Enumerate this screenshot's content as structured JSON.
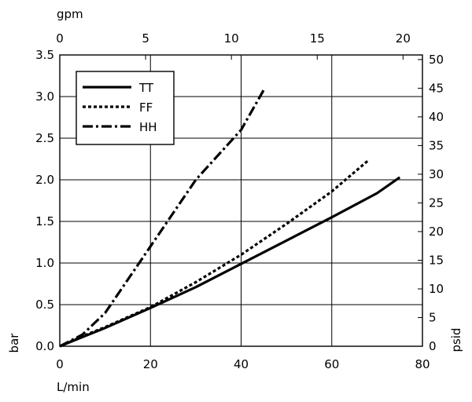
{
  "chart_data": {
    "type": "line",
    "xlabel": "L/min",
    "xlim": [
      0,
      80
    ],
    "xticks": [
      "0",
      "20",
      "40",
      "60",
      "80"
    ],
    "x2label": "gpm",
    "x2lim": [
      0,
      21.13
    ],
    "x2ticks": [
      "0",
      "5",
      "10",
      "15",
      "20"
    ],
    "ylabel": "bar",
    "ylim": [
      0,
      3.5
    ],
    "yticks": [
      "0.0",
      "0.5",
      "1.0",
      "1.5",
      "2.0",
      "2.5",
      "3.0",
      "3.5"
    ],
    "y2label": "psid",
    "y2lim": [
      0,
      50.8
    ],
    "y2ticks": [
      "0",
      "5",
      "10",
      "15",
      "20",
      "25",
      "30",
      "35",
      "40",
      "45",
      "50"
    ],
    "grid": true,
    "legend_position": "top-left",
    "series": [
      {
        "name": "TT",
        "line_style": "solid",
        "x": [
          0,
          5,
          10,
          20,
          30,
          40,
          50,
          60,
          70,
          75
        ],
        "y": [
          0.0,
          0.11,
          0.22,
          0.46,
          0.71,
          0.99,
          1.27,
          1.55,
          1.84,
          2.03
        ]
      },
      {
        "name": "FF",
        "line_style": "dotted",
        "x": [
          0,
          5,
          10,
          20,
          30,
          40,
          50,
          60,
          68
        ],
        "y": [
          0.0,
          0.12,
          0.23,
          0.47,
          0.77,
          1.1,
          1.47,
          1.86,
          2.23
        ]
      },
      {
        "name": "HH",
        "line_style": "dash-dot",
        "x": [
          0,
          5,
          10,
          20,
          30,
          40,
          45
        ],
        "y": [
          0.0,
          0.14,
          0.4,
          1.2,
          2.0,
          2.6,
          3.08
        ]
      }
    ]
  }
}
